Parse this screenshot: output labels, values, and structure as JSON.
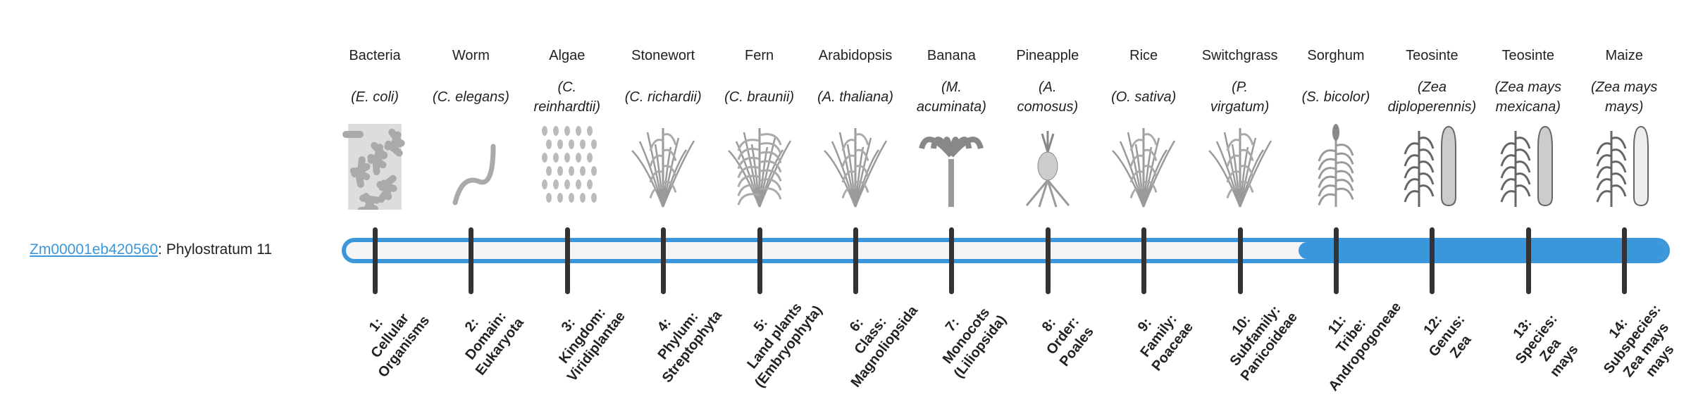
{
  "gene": {
    "id": "Zm00001eb420560",
    "separator": ": ",
    "stratum_text": "Phylostratum 11"
  },
  "current_stratum": 11,
  "colors": {
    "accent": "#3a97db",
    "track": "#f4f4f4",
    "tick": "#333333"
  },
  "strata": [
    {
      "common": "Bacteria",
      "species": [
        "(E. coli)"
      ],
      "icon": "bacteria-icon",
      "label": [
        "1:",
        "Cellular",
        "Organisms"
      ]
    },
    {
      "common": "Worm",
      "species": [
        "(C. elegans)"
      ],
      "icon": "worm-icon",
      "label": [
        "2:",
        "Domain:",
        "Eukaryota"
      ]
    },
    {
      "common": "Algae",
      "species": [
        "(C.",
        "reinhardtii)"
      ],
      "icon": "algae-icon",
      "label": [
        "3:",
        "Kingdom:",
        "Viridiplantae"
      ]
    },
    {
      "common": "Stonewort",
      "species": [
        "(C. richardii)"
      ],
      "icon": "stonewort-icon",
      "label": [
        "4:",
        "Phylum:",
        "Streptophyta"
      ]
    },
    {
      "common": "Fern",
      "species": [
        "(C. braunii)"
      ],
      "icon": "fern-icon",
      "label": [
        "5:",
        "Land plants",
        "(Embryophyta)"
      ]
    },
    {
      "common": "Arabidopsis",
      "species": [
        "(A. thaliana)"
      ],
      "icon": "arabidopsis-icon",
      "label": [
        "6:",
        "Class:",
        "Magnoliopsida"
      ]
    },
    {
      "common": "Banana",
      "species": [
        "(M.",
        "acuminata)"
      ],
      "icon": "banana-icon",
      "label": [
        "7:",
        "Monocots",
        "(Liliopsida)"
      ]
    },
    {
      "common": "Pineapple",
      "species": [
        "(A.",
        "comosus)"
      ],
      "icon": "pineapple-icon",
      "label": [
        "8:",
        "Order:",
        "Poales"
      ]
    },
    {
      "common": "Rice",
      "species": [
        "(O. sativa)"
      ],
      "icon": "rice-icon",
      "label": [
        "9:",
        "Family:",
        "Poaceae"
      ]
    },
    {
      "common": "Switchgrass",
      "species": [
        "(P.",
        "virgatum)"
      ],
      "icon": "switchgrass-icon",
      "label": [
        "10:",
        "Subfamily:",
        "Panicoideae"
      ]
    },
    {
      "common": "Sorghum",
      "species": [
        "(S. bicolor)"
      ],
      "icon": "sorghum-icon",
      "label": [
        "11:",
        "Tribe:",
        "Andropogoneae"
      ]
    },
    {
      "common": "Teosinte",
      "species": [
        "(Zea",
        "diploperennis)"
      ],
      "icon": "teosinte-icon",
      "label": [
        "12:",
        "Genus:",
        "Zea"
      ]
    },
    {
      "common": "Teosinte",
      "species": [
        "(Zea mays",
        "mexicana)"
      ],
      "icon": "teosinte-mexicana-icon",
      "label": [
        "13:",
        "Species:",
        "Zea",
        "mays"
      ]
    },
    {
      "common": "Maize",
      "species": [
        "(Zea mays",
        "mays)"
      ],
      "icon": "maize-icon",
      "label": [
        "14:",
        "Subspecies:",
        "Zea mays",
        "mays"
      ]
    }
  ]
}
